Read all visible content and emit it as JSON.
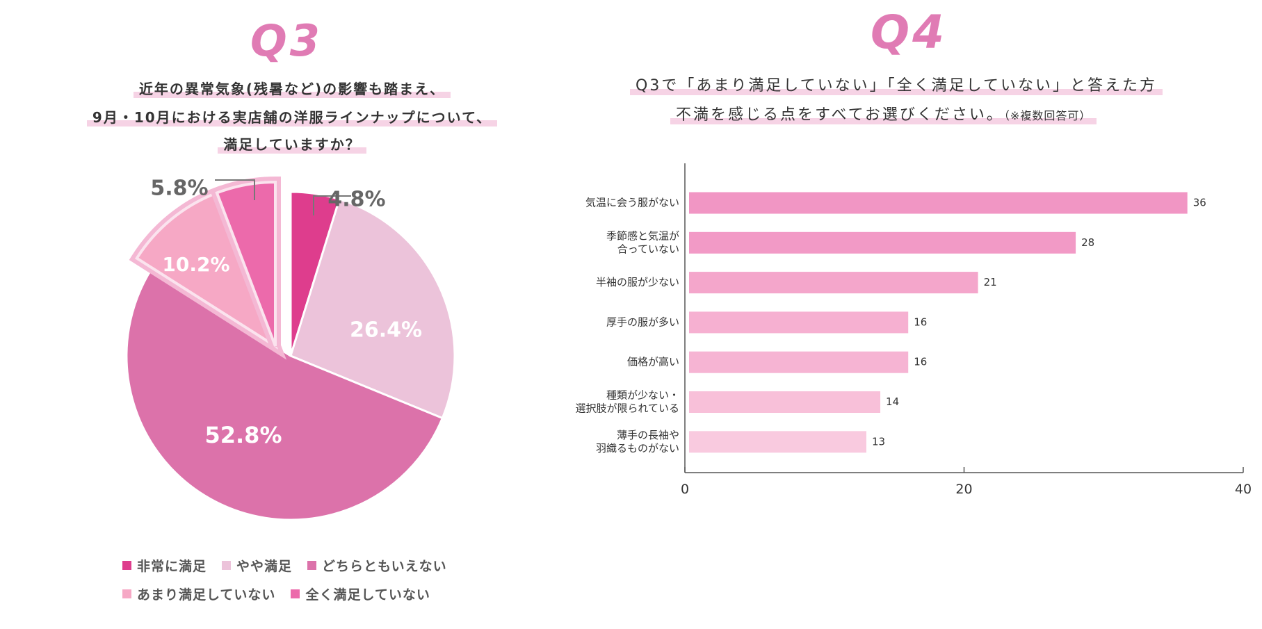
{
  "q3": {
    "title": "Q3",
    "question_lines": [
      "近年の異常気象(残暑など)の影響も踏まえ、",
      "9月・10月における実店舗の洋服ラインナップについて、",
      "満足していますか？"
    ]
  },
  "q4": {
    "title": "Q4",
    "question_line1": "Q3で「あまり満足していない」「全く満足していない」と答えた方",
    "question_line2": "不満を感じる点をすべてお選びください。",
    "question_note": "（※複数回答可）"
  },
  "chart_data": [
    {
      "type": "pie",
      "slices": [
        {
          "label": "非常に満足",
          "value": 4.8,
          "display": "4.8%",
          "color": "#de3d8d",
          "exploded": false
        },
        {
          "label": "やや満足",
          "value": 26.4,
          "display": "26.4%",
          "color": "#ecc3da",
          "exploded": false
        },
        {
          "label": "どちらともいえない",
          "value": 52.8,
          "display": "52.8%",
          "color": "#dc72aa",
          "exploded": false
        },
        {
          "label": "あまり満足していない",
          "value": 10.2,
          "display": "10.2%",
          "color": "#f6a8c5",
          "exploded": true
        },
        {
          "label": "全く満足していない",
          "value": 5.8,
          "display": "5.8%",
          "color": "#ec6aab",
          "exploded": true
        }
      ],
      "legend": [
        [
          "非常に満足",
          "やや満足",
          "どちらともいえない"
        ],
        [
          "あまり満足していない",
          "全く満足していない"
        ]
      ],
      "legend_position": "bottom"
    },
    {
      "type": "bar",
      "orientation": "horizontal",
      "categories": [
        "気温に会う服がない",
        "季節感と気温が\n合っていない",
        "半袖の服が少ない",
        "厚手の服が多い",
        "価格が高い",
        "種類が少ない・\n選択肢が限られている",
        "薄手の長袖や\n羽織るものがない"
      ],
      "values": [
        36,
        28,
        21,
        16,
        16,
        14,
        13
      ],
      "colors": [
        "#f196c4",
        "#f29ac6",
        "#f4a6cb",
        "#f6b0d1",
        "#f6b4d3",
        "#f8c0d9",
        "#f9cadf"
      ],
      "xlim": [
        0,
        40
      ],
      "xticks": [
        0,
        20,
        40
      ],
      "grid": false
    }
  ]
}
